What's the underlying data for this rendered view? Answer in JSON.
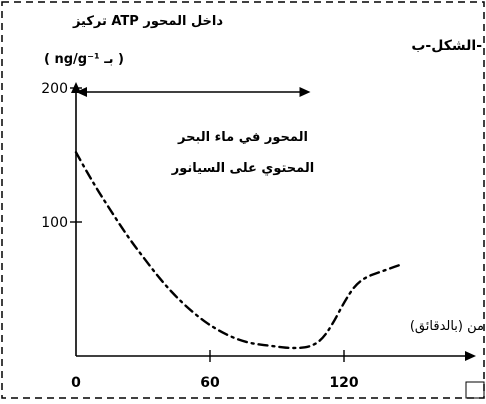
{
  "chart_data": {
    "type": "line",
    "title": "الشكل-ب-",
    "ylabel": "تركيز ATP داخل المحور",
    "yunit": "( ng/g⁻¹ بـ )",
    "xlabel": "من (بالدقائق)",
    "xlim": [
      0,
      160
    ],
    "ylim": [
      0,
      200
    ],
    "x_ticks": [
      0,
      60,
      120
    ],
    "y_ticks": [
      100,
      200
    ],
    "annotation": {
      "text_line1": "المحور في ماء البحر",
      "text_line2": "المحتوي على السيانور",
      "arrow_from": 0,
      "arrow_to": 105
    },
    "series": [
      {
        "line_style": "dash-dot",
        "x": [
          0,
          5,
          10,
          15,
          20,
          25,
          30,
          35,
          40,
          45,
          50,
          55,
          60,
          65,
          70,
          75,
          80,
          85,
          90,
          95,
          100,
          105,
          110,
          115,
          120,
          125,
          130,
          135,
          140,
          145
        ],
        "y": [
          152,
          137,
          123,
          110,
          97,
          85,
          74,
          63,
          53,
          44,
          36,
          29,
          23,
          18,
          14,
          11,
          9,
          8,
          7,
          6,
          6,
          7,
          12,
          24,
          40,
          53,
          59,
          62,
          65,
          68
        ]
      }
    ]
  }
}
